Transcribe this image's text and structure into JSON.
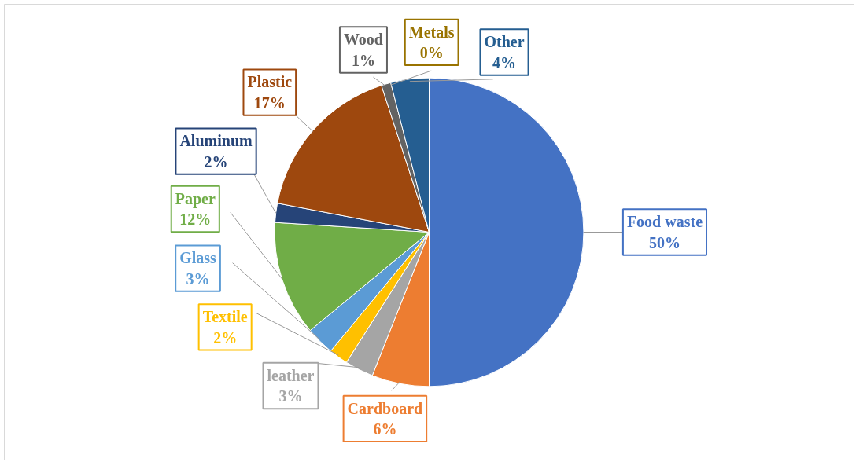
{
  "chart_data": {
    "type": "pie",
    "categories": [
      "Food waste",
      "Cardboard",
      "leather",
      "Textile",
      "Glass",
      "Paper",
      "Aluminum",
      "Plastic",
      "Wood",
      "Metals",
      "Other"
    ],
    "values": [
      50,
      6,
      3,
      2,
      3,
      12,
      2,
      17,
      1,
      0,
      4
    ],
    "value_labels": [
      "50%",
      "6%",
      "3%",
      "2%",
      "3%",
      "12%",
      "2%",
      "17%",
      "1%",
      "0%",
      "4%"
    ],
    "colors": [
      "#4472c4",
      "#ed7d31",
      "#a5a5a5",
      "#ffc000",
      "#5b9bd5",
      "#70ad47",
      "#264478",
      "#9e480e",
      "#636363",
      "#997300",
      "#255e91"
    ]
  }
}
